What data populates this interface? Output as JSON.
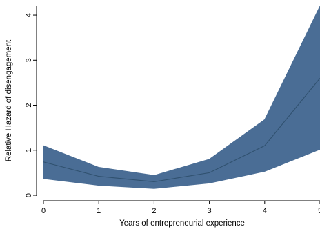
{
  "chart_data": {
    "type": "area",
    "title": "",
    "xlabel": "Years of entrepreneurial experience",
    "ylabel": "Relative Hazard of disengagement",
    "x": [
      0,
      1,
      2,
      3,
      4,
      5
    ],
    "x_ticks": [
      "0",
      "1",
      "2",
      "3",
      "4",
      "5"
    ],
    "y_ticks": [
      "0",
      "1",
      "2",
      "3",
      "4"
    ],
    "xlim": [
      0,
      5
    ],
    "ylim": [
      0,
      4.2
    ],
    "grid": false,
    "series": [
      {
        "role": "estimate",
        "values": [
          0.74,
          0.42,
          0.3,
          0.5,
          1.1,
          2.6
        ]
      },
      {
        "role": "upper_bound",
        "values": [
          1.1,
          0.62,
          0.44,
          0.8,
          1.68,
          4.2
        ]
      },
      {
        "role": "lower_bound",
        "values": [
          0.37,
          0.22,
          0.15,
          0.27,
          0.53,
          1.02
        ]
      }
    ],
    "band_color": "#4a6d95",
    "line_color": "#30516f"
  }
}
